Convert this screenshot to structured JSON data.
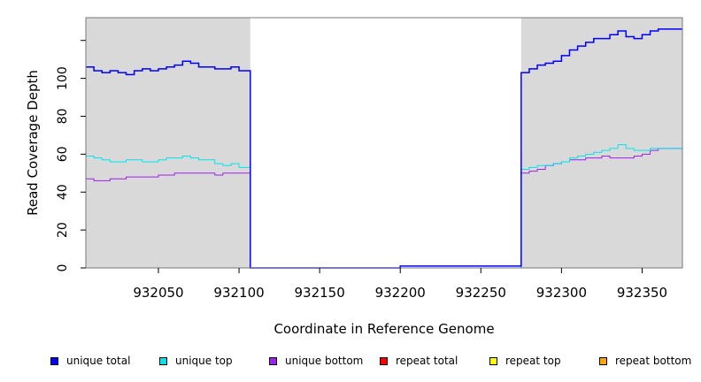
{
  "chart_data": {
    "type": "line",
    "xlabel": "Coordinate in Reference Genome",
    "ylabel": "Read Coverage Depth",
    "xlim": [
      932005,
      932375
    ],
    "ylim": [
      0,
      132
    ],
    "x_ticks": [
      "932050",
      "932100",
      "932150",
      "932200",
      "932250",
      "932300",
      "932350"
    ],
    "y_ticks": [
      "0",
      "20",
      "40",
      "60",
      "80",
      "100"
    ],
    "shaded_regions": [
      [
        932005,
        932107
      ],
      [
        932275,
        932375
      ]
    ],
    "colors": {
      "unique_total": "#0000ff",
      "unique_top": "#00e5ee",
      "unique_bottom": "#a020f0",
      "repeat_total": "#ff0000",
      "repeat_top": "#ffff00",
      "repeat_bottom": "#ffa500",
      "shade": "#d9d9d9"
    },
    "series": [
      {
        "name": "unique total",
        "key": "unique_total",
        "points": [
          [
            932005,
            106
          ],
          [
            932010,
            104
          ],
          [
            932015,
            103
          ],
          [
            932020,
            104
          ],
          [
            932025,
            103
          ],
          [
            932030,
            102
          ],
          [
            932035,
            104
          ],
          [
            932040,
            105
          ],
          [
            932045,
            104
          ],
          [
            932050,
            105
          ],
          [
            932055,
            106
          ],
          [
            932060,
            107
          ],
          [
            932065,
            109
          ],
          [
            932070,
            108
          ],
          [
            932075,
            106
          ],
          [
            932080,
            106
          ],
          [
            932085,
            105
          ],
          [
            932090,
            105
          ],
          [
            932095,
            106
          ],
          [
            932100,
            104
          ],
          [
            932107,
            104
          ],
          [
            932107,
            0
          ],
          [
            932200,
            0
          ],
          [
            932200,
            1
          ],
          [
            932275,
            1
          ],
          [
            932275,
            103
          ],
          [
            932280,
            105
          ],
          [
            932285,
            107
          ],
          [
            932290,
            108
          ],
          [
            932295,
            109
          ],
          [
            932300,
            112
          ],
          [
            932305,
            115
          ],
          [
            932310,
            117
          ],
          [
            932315,
            119
          ],
          [
            932320,
            121
          ],
          [
            932325,
            121
          ],
          [
            932330,
            123
          ],
          [
            932335,
            125
          ],
          [
            932340,
            122
          ],
          [
            932345,
            121
          ],
          [
            932350,
            123
          ],
          [
            932355,
            125
          ],
          [
            932360,
            126
          ],
          [
            932365,
            126
          ],
          [
            932370,
            126
          ],
          [
            932375,
            126
          ]
        ]
      },
      {
        "name": "unique top",
        "key": "unique_top",
        "points": [
          [
            932005,
            59
          ],
          [
            932010,
            58
          ],
          [
            932015,
            57
          ],
          [
            932020,
            56
          ],
          [
            932025,
            56
          ],
          [
            932030,
            57
          ],
          [
            932035,
            57
          ],
          [
            932040,
            56
          ],
          [
            932045,
            56
          ],
          [
            932050,
            57
          ],
          [
            932055,
            58
          ],
          [
            932060,
            58
          ],
          [
            932065,
            59
          ],
          [
            932070,
            58
          ],
          [
            932075,
            57
          ],
          [
            932080,
            57
          ],
          [
            932085,
            55
          ],
          [
            932090,
            54
          ],
          [
            932095,
            55
          ],
          [
            932100,
            53
          ],
          [
            932107,
            53
          ],
          [
            932107,
            0
          ],
          [
            932275,
            0
          ],
          [
            932275,
            52
          ],
          [
            932280,
            53
          ],
          [
            932285,
            54
          ],
          [
            932290,
            54
          ],
          [
            932295,
            55
          ],
          [
            932300,
            56
          ],
          [
            932305,
            58
          ],
          [
            932310,
            59
          ],
          [
            932315,
            60
          ],
          [
            932320,
            61
          ],
          [
            932325,
            62
          ],
          [
            932330,
            63
          ],
          [
            932335,
            65
          ],
          [
            932340,
            63
          ],
          [
            932345,
            62
          ],
          [
            932350,
            62
          ],
          [
            932355,
            63
          ],
          [
            932360,
            63
          ],
          [
            932365,
            63
          ],
          [
            932370,
            63
          ],
          [
            932375,
            63
          ]
        ]
      },
      {
        "name": "unique bottom",
        "key": "unique_bottom",
        "points": [
          [
            932005,
            47
          ],
          [
            932010,
            46
          ],
          [
            932015,
            46
          ],
          [
            932020,
            47
          ],
          [
            932025,
            47
          ],
          [
            932030,
            48
          ],
          [
            932035,
            48
          ],
          [
            932040,
            48
          ],
          [
            932045,
            48
          ],
          [
            932050,
            49
          ],
          [
            932055,
            49
          ],
          [
            932060,
            50
          ],
          [
            932065,
            50
          ],
          [
            932070,
            50
          ],
          [
            932075,
            50
          ],
          [
            932080,
            50
          ],
          [
            932085,
            49
          ],
          [
            932090,
            50
          ],
          [
            932095,
            50
          ],
          [
            932100,
            50
          ],
          [
            932107,
            50
          ],
          [
            932107,
            0
          ],
          [
            932275,
            0
          ],
          [
            932275,
            50
          ],
          [
            932280,
            51
          ],
          [
            932285,
            52
          ],
          [
            932290,
            54
          ],
          [
            932295,
            55
          ],
          [
            932300,
            56
          ],
          [
            932305,
            57
          ],
          [
            932310,
            57
          ],
          [
            932315,
            58
          ],
          [
            932320,
            58
          ],
          [
            932325,
            59
          ],
          [
            932330,
            58
          ],
          [
            932335,
            58
          ],
          [
            932340,
            58
          ],
          [
            932345,
            59
          ],
          [
            932350,
            60
          ],
          [
            932355,
            62
          ],
          [
            932360,
            63
          ],
          [
            932365,
            63
          ],
          [
            932370,
            63
          ],
          [
            932375,
            64
          ]
        ]
      },
      {
        "name": "repeat total",
        "key": "repeat_total",
        "points": [
          [
            932005,
            0
          ],
          [
            932375,
            0
          ]
        ]
      },
      {
        "name": "repeat top",
        "key": "repeat_top",
        "points": [
          [
            932005,
            0
          ],
          [
            932375,
            0
          ]
        ]
      },
      {
        "name": "repeat bottom",
        "key": "repeat_bottom",
        "points": [
          [
            932005,
            0
          ],
          [
            932375,
            0
          ]
        ]
      }
    ]
  }
}
